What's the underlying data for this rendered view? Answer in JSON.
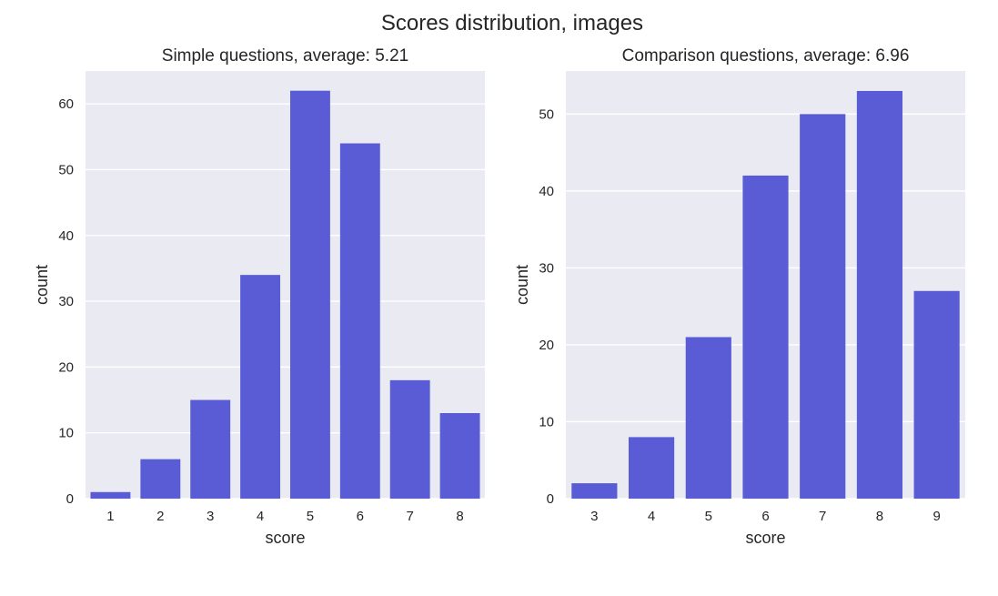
{
  "figure": {
    "title": "Scores distribution, images"
  },
  "colors": {
    "bar": "#5a5cd6",
    "plot_background": "#eaeaf2",
    "grid": "#ffffff",
    "text": "#262626"
  },
  "chart_data": [
    {
      "type": "bar",
      "title": "Simple questions, average: 5.21",
      "xlabel": "score",
      "ylabel": "count",
      "categories": [
        "1",
        "2",
        "3",
        "4",
        "5",
        "6",
        "7",
        "8"
      ],
      "values": [
        1,
        6,
        15,
        34,
        62,
        54,
        18,
        13
      ],
      "ylim": [
        0,
        65
      ],
      "yticks": [
        "0",
        "10",
        "20",
        "30",
        "40",
        "50",
        "60"
      ],
      "grid": true,
      "grid_axis": "y"
    },
    {
      "type": "bar",
      "title": "Comparison questions, average: 6.96",
      "xlabel": "score",
      "ylabel": "count",
      "categories": [
        "3",
        "4",
        "5",
        "6",
        "7",
        "8",
        "9"
      ],
      "values": [
        2,
        8,
        21,
        42,
        50,
        53,
        27
      ],
      "ylim": [
        0,
        55.6
      ],
      "yticks": [
        "0",
        "10",
        "20",
        "30",
        "40",
        "50"
      ],
      "grid": true,
      "grid_axis": "y"
    }
  ]
}
